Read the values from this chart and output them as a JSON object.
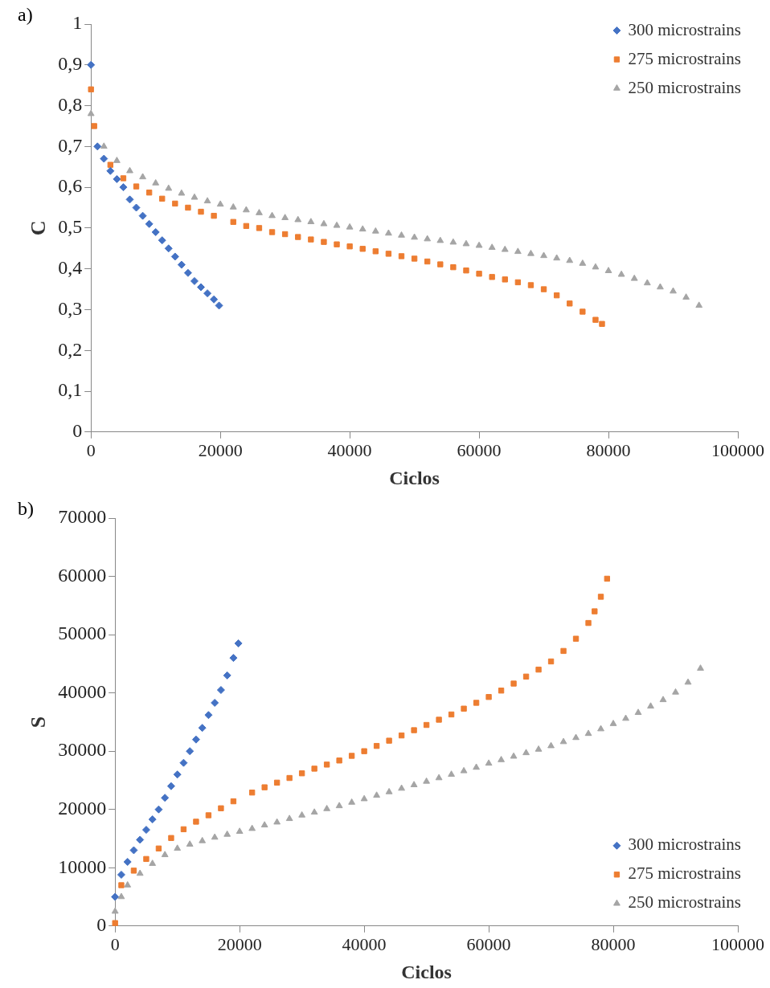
{
  "chart_data": [
    {
      "type": "scatter",
      "annotations": [
        "a)"
      ],
      "xlabel": "Ciclos",
      "ylabel": "C",
      "legend": "top right",
      "grid": false,
      "xlim": [
        0,
        100000
      ],
      "xticks": [
        0,
        20000,
        40000,
        60000,
        80000,
        100000
      ],
      "ylim": [
        0,
        1
      ],
      "yticks": [
        0,
        {
          "value": 0.1,
          "label": "0,1"
        },
        {
          "value": 0.2,
          "label": "0,2"
        },
        {
          "value": 0.3,
          "label": "0,3"
        },
        {
          "value": 0.4,
          "label": "0,4"
        },
        {
          "value": 0.5,
          "label": "0,5"
        },
        {
          "value": 0.6,
          "label": "0,6"
        },
        {
          "value": 0.7,
          "label": "0,7"
        },
        {
          "value": 0.8,
          "label": "0,8"
        },
        {
          "value": 0.9,
          "label": "0,9"
        },
        1
      ],
      "series": [
        {
          "name": "300 microstrains",
          "color": "#4472c4",
          "marker": "diamond",
          "x": [
            0,
            1000,
            2000,
            3000,
            4000,
            5000,
            6000,
            7000,
            8000,
            9000,
            10000,
            11000,
            12000,
            13000,
            14000,
            15000,
            16000,
            17000,
            18000,
            19000,
            19800
          ],
          "values": [
            0.9,
            0.7,
            0.67,
            0.64,
            0.62,
            0.6,
            0.57,
            0.55,
            0.53,
            0.51,
            0.49,
            0.47,
            0.45,
            0.43,
            0.41,
            0.39,
            0.37,
            0.355,
            0.34,
            0.325,
            0.31
          ]
        },
        {
          "name": "275 microstrains",
          "color": "#ed7d31",
          "marker": "square",
          "x": [
            0,
            500,
            3000,
            5000,
            7000,
            9000,
            11000,
            13000,
            15000,
            17000,
            19000,
            22000,
            24000,
            26000,
            28000,
            30000,
            32000,
            34000,
            36000,
            38000,
            40000,
            42000,
            44000,
            46000,
            48000,
            50000,
            52000,
            54000,
            56000,
            58000,
            60000,
            62000,
            64000,
            66000,
            68000,
            70000,
            72000,
            74000,
            76000,
            78000,
            79000
          ],
          "values": [
            0.84,
            0.75,
            0.655,
            0.622,
            0.602,
            0.587,
            0.572,
            0.56,
            0.55,
            0.54,
            0.53,
            0.515,
            0.505,
            0.5,
            0.49,
            0.485,
            0.478,
            0.472,
            0.466,
            0.46,
            0.455,
            0.449,
            0.443,
            0.437,
            0.431,
            0.425,
            0.418,
            0.411,
            0.404,
            0.396,
            0.388,
            0.38,
            0.374,
            0.367,
            0.36,
            0.35,
            0.335,
            0.315,
            0.295,
            0.275,
            0.265
          ]
        },
        {
          "name": "250 microstrains",
          "color": "#a5a5a5",
          "marker": "triangle",
          "x": [
            0,
            2000,
            4000,
            6000,
            8000,
            10000,
            12000,
            14000,
            16000,
            18000,
            20000,
            22000,
            24000,
            26000,
            28000,
            30000,
            32000,
            34000,
            36000,
            38000,
            40000,
            42000,
            44000,
            46000,
            48000,
            50000,
            52000,
            54000,
            56000,
            58000,
            60000,
            62000,
            64000,
            66000,
            68000,
            70000,
            72000,
            74000,
            76000,
            78000,
            80000,
            82000,
            84000,
            86000,
            88000,
            90000,
            92000,
            94000
          ],
          "values": [
            0.78,
            0.7,
            0.665,
            0.64,
            0.625,
            0.61,
            0.597,
            0.585,
            0.575,
            0.566,
            0.558,
            0.551,
            0.544,
            0.537,
            0.53,
            0.525,
            0.52,
            0.515,
            0.51,
            0.506,
            0.502,
            0.497,
            0.492,
            0.487,
            0.482,
            0.477,
            0.473,
            0.469,
            0.465,
            0.461,
            0.457,
            0.452,
            0.447,
            0.442,
            0.437,
            0.432,
            0.426,
            0.42,
            0.413,
            0.404,
            0.395,
            0.386,
            0.376,
            0.365,
            0.355,
            0.345,
            0.33,
            0.31
          ]
        }
      ]
    },
    {
      "type": "scatter",
      "annotations": [
        "b)"
      ],
      "xlabel": "Ciclos",
      "ylabel": "S",
      "legend": "bottom right",
      "grid": false,
      "xlim": [
        0,
        100000
      ],
      "xticks": [
        0,
        20000,
        40000,
        60000,
        80000,
        100000
      ],
      "ylim": [
        0,
        70000
      ],
      "yticks": [
        0,
        10000,
        20000,
        30000,
        40000,
        50000,
        60000,
        70000
      ],
      "series": [
        {
          "name": "300 microstrains",
          "color": "#4472c4",
          "marker": "diamond",
          "x": [
            0,
            1000,
            2000,
            3000,
            4000,
            5000,
            6000,
            7000,
            8000,
            9000,
            10000,
            11000,
            12000,
            13000,
            14000,
            15000,
            16000,
            17000,
            18000,
            19000,
            19800
          ],
          "values": [
            5000,
            8800,
            11000,
            13000,
            14800,
            16500,
            18300,
            20000,
            22000,
            24000,
            26000,
            28000,
            30000,
            32000,
            34000,
            36200,
            38300,
            40500,
            43000,
            46000,
            48500
          ]
        },
        {
          "name": "275 microstrains",
          "color": "#ed7d31",
          "marker": "square",
          "x": [
            0,
            1000,
            3000,
            5000,
            7000,
            9000,
            11000,
            13000,
            15000,
            17000,
            19000,
            22000,
            24000,
            26000,
            28000,
            30000,
            32000,
            34000,
            36000,
            38000,
            40000,
            42000,
            44000,
            46000,
            48000,
            50000,
            52000,
            54000,
            56000,
            58000,
            60000,
            62000,
            64000,
            66000,
            68000,
            70000,
            72000,
            74000,
            76000,
            77000,
            78000,
            79000
          ],
          "values": [
            500,
            7000,
            9500,
            11500,
            13300,
            15100,
            16600,
            17900,
            19000,
            20200,
            21400,
            22900,
            23800,
            24600,
            25400,
            26200,
            27000,
            27700,
            28400,
            29200,
            30000,
            30900,
            31800,
            32700,
            33600,
            34500,
            35400,
            36300,
            37300,
            38300,
            39300,
            40400,
            41600,
            42800,
            44000,
            45400,
            47200,
            49300,
            52000,
            54000,
            56500,
            59600
          ]
        },
        {
          "name": "250 microstrains",
          "color": "#a5a5a5",
          "marker": "triangle",
          "x": [
            0,
            1000,
            2000,
            4000,
            6000,
            8000,
            10000,
            12000,
            14000,
            16000,
            18000,
            20000,
            22000,
            24000,
            26000,
            28000,
            30000,
            32000,
            34000,
            36000,
            38000,
            40000,
            42000,
            44000,
            46000,
            48000,
            50000,
            52000,
            54000,
            56000,
            58000,
            60000,
            62000,
            64000,
            66000,
            68000,
            70000,
            72000,
            74000,
            76000,
            78000,
            80000,
            82000,
            84000,
            86000,
            88000,
            90000,
            92000,
            94000
          ],
          "values": [
            2500,
            5000,
            7000,
            9000,
            10700,
            12200,
            13300,
            14000,
            14600,
            15200,
            15700,
            16200,
            16700,
            17300,
            17800,
            18400,
            19000,
            19500,
            20100,
            20600,
            21200,
            21800,
            22400,
            23000,
            23600,
            24200,
            24800,
            25400,
            26000,
            26600,
            27200,
            27900,
            28500,
            29100,
            29700,
            30300,
            30900,
            31600,
            32300,
            33000,
            33800,
            34700,
            35600,
            36600,
            37700,
            38800,
            40100,
            41800,
            44200
          ]
        }
      ]
    }
  ]
}
